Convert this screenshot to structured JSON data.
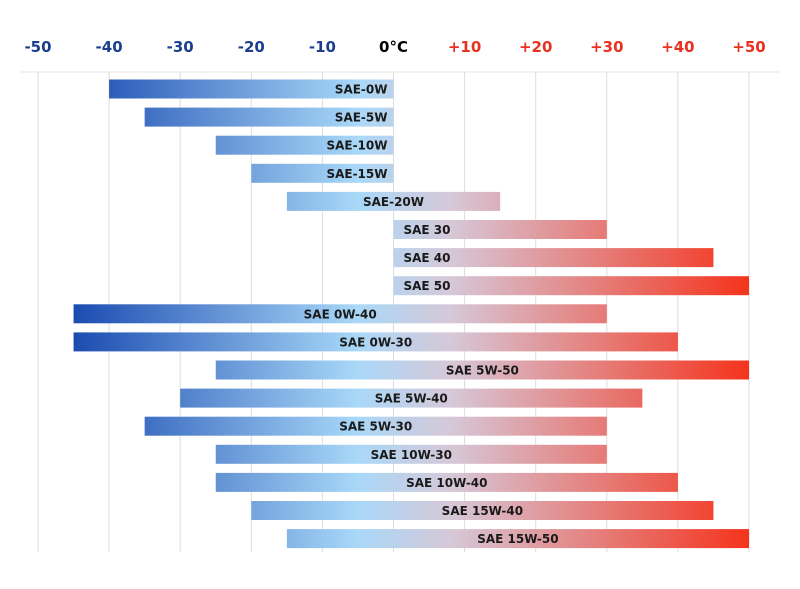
{
  "chart_data": {
    "type": "bar",
    "orientation": "horizontal-range",
    "xlim": [
      -50,
      50
    ],
    "grid": true,
    "legend": "none",
    "x_ticks": [
      {
        "value": -50,
        "label": "-50"
      },
      {
        "value": -40,
        "label": "-40"
      },
      {
        "value": -30,
        "label": "-30"
      },
      {
        "value": -20,
        "label": "-20"
      },
      {
        "value": -10,
        "label": "-10"
      },
      {
        "value": 0,
        "label": "0°C"
      },
      {
        "value": 10,
        "label": "+10"
      },
      {
        "value": 20,
        "label": "+20"
      },
      {
        "value": 30,
        "label": "+30"
      },
      {
        "value": 40,
        "label": "+40"
      },
      {
        "value": 50,
        "label": "+50"
      }
    ],
    "categories": [
      "SAE-0W",
      "SAE-5W",
      "SAE-10W",
      "SAE-15W",
      "SAE-20W",
      "SAE 30",
      "SAE 40",
      "SAE 50",
      "SAE 0W-40",
      "SAE 0W-30",
      "SAE 5W-50",
      "SAE 5W-40",
      "SAE 5W-30",
      "SAE 10W-30",
      "SAE 10W-40",
      "SAE 15W-40",
      "SAE 15W-50"
    ],
    "ranges": [
      [
        -40,
        0
      ],
      [
        -35,
        0
      ],
      [
        -25,
        0
      ],
      [
        -20,
        0
      ],
      [
        -15,
        15
      ],
      [
        0,
        30
      ],
      [
        0,
        45
      ],
      [
        0,
        50
      ],
      [
        -45,
        30
      ],
      [
        -45,
        40
      ],
      [
        -25,
        50
      ],
      [
        -30,
        35
      ],
      [
        -35,
        30
      ],
      [
        -25,
        30
      ],
      [
        -25,
        40
      ],
      [
        -20,
        45
      ],
      [
        -15,
        50
      ]
    ],
    "colors": {
      "cold": "#0a3aa8",
      "neutral": "#a9d8f8",
      "hot": "#f5331c",
      "negative_tick": "#1a3f8f",
      "zero_tick": "#000000",
      "positive_tick": "#e8321f",
      "grid": "#dddddd"
    }
  }
}
